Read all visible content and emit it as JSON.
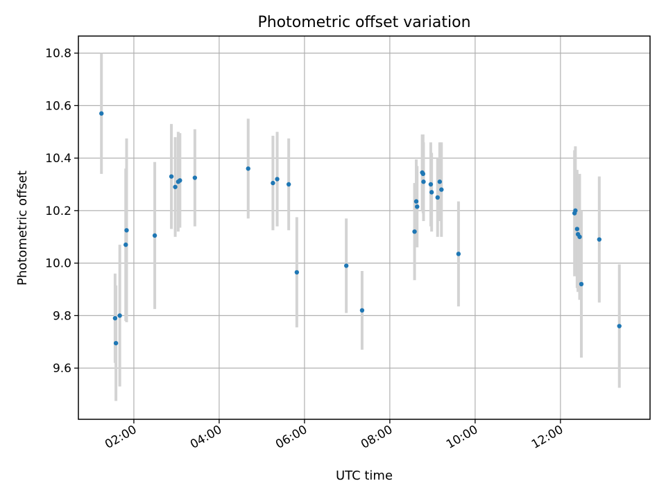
{
  "chart_data": {
    "type": "scatter",
    "title": "Photometric offset variation",
    "xlabel": "UTC time",
    "ylabel": "Photometric offset",
    "x_unit": "hours UTC",
    "xlim": [
      0.7,
      14.1
    ],
    "ylim": [
      9.405,
      10.865
    ],
    "x_ticks": [
      {
        "value": 2,
        "label": "02:00"
      },
      {
        "value": 4,
        "label": "04:00"
      },
      {
        "value": 6,
        "label": "06:00"
      },
      {
        "value": 8,
        "label": "08:00"
      },
      {
        "value": 10,
        "label": "10:00"
      },
      {
        "value": 12,
        "label": "12:00"
      }
    ],
    "y_ticks": [
      {
        "value": 9.6,
        "label": "9.6"
      },
      {
        "value": 9.8,
        "label": "9.8"
      },
      {
        "value": 10.0,
        "label": "10.0"
      },
      {
        "value": 10.2,
        "label": "10.2"
      },
      {
        "value": 10.4,
        "label": "10.4"
      },
      {
        "value": 10.6,
        "label": "10.6"
      },
      {
        "value": 10.8,
        "label": "10.8"
      }
    ],
    "grid": true,
    "x_tick_rotation": "rotated 30°",
    "marker_color": "#1f77b4",
    "errorbar_color": "#d3d3d3",
    "series": [
      {
        "points": [
          {
            "x": 1.24,
            "y": 10.57,
            "err": 0.23
          },
          {
            "x": 1.56,
            "y": 9.79,
            "err": 0.17
          },
          {
            "x": 1.58,
            "y": 9.695,
            "err": 0.22
          },
          {
            "x": 1.67,
            "y": 9.8,
            "err": 0.27
          },
          {
            "x": 1.81,
            "y": 10.07,
            "err": 0.29
          },
          {
            "x": 1.83,
            "y": 10.125,
            "err": 0.35
          },
          {
            "x": 2.49,
            "y": 10.105,
            "err": 0.28
          },
          {
            "x": 2.88,
            "y": 10.33,
            "err": 0.2
          },
          {
            "x": 2.97,
            "y": 10.29,
            "err": 0.19
          },
          {
            "x": 3.04,
            "y": 10.31,
            "err": 0.19
          },
          {
            "x": 3.08,
            "y": 10.315,
            "err": 0.18
          },
          {
            "x": 3.43,
            "y": 10.325,
            "err": 0.185
          },
          {
            "x": 4.68,
            "y": 10.36,
            "err": 0.19
          },
          {
            "x": 5.26,
            "y": 10.305,
            "err": 0.18
          },
          {
            "x": 5.36,
            "y": 10.32,
            "err": 0.18
          },
          {
            "x": 5.63,
            "y": 10.3,
            "err": 0.175
          },
          {
            "x": 5.82,
            "y": 9.965,
            "err": 0.21
          },
          {
            "x": 6.98,
            "y": 9.99,
            "err": 0.18
          },
          {
            "x": 7.35,
            "y": 9.82,
            "err": 0.15
          },
          {
            "x": 8.58,
            "y": 10.12,
            "err": 0.185
          },
          {
            "x": 8.62,
            "y": 10.235,
            "err": 0.16
          },
          {
            "x": 8.64,
            "y": 10.215,
            "err": 0.155
          },
          {
            "x": 8.76,
            "y": 10.345,
            "err": 0.145
          },
          {
            "x": 8.78,
            "y": 10.34,
            "err": 0.15
          },
          {
            "x": 8.79,
            "y": 10.31,
            "err": 0.15
          },
          {
            "x": 8.96,
            "y": 10.3,
            "err": 0.16
          },
          {
            "x": 8.98,
            "y": 10.27,
            "err": 0.15
          },
          {
            "x": 9.12,
            "y": 10.25,
            "err": 0.15
          },
          {
            "x": 9.17,
            "y": 10.31,
            "err": 0.15
          },
          {
            "x": 9.21,
            "y": 10.28,
            "err": 0.18
          },
          {
            "x": 9.61,
            "y": 10.035,
            "err": 0.2
          },
          {
            "x": 12.33,
            "y": 10.19,
            "err": 0.24
          },
          {
            "x": 12.35,
            "y": 10.2,
            "err": 0.245
          },
          {
            "x": 12.39,
            "y": 10.13,
            "err": 0.225
          },
          {
            "x": 12.41,
            "y": 10.11,
            "err": 0.22
          },
          {
            "x": 12.45,
            "y": 10.1,
            "err": 0.24
          },
          {
            "x": 12.49,
            "y": 9.92,
            "err": 0.28
          },
          {
            "x": 12.91,
            "y": 10.09,
            "err": 0.24
          },
          {
            "x": 13.38,
            "y": 9.76,
            "err": 0.235
          }
        ]
      }
    ]
  }
}
